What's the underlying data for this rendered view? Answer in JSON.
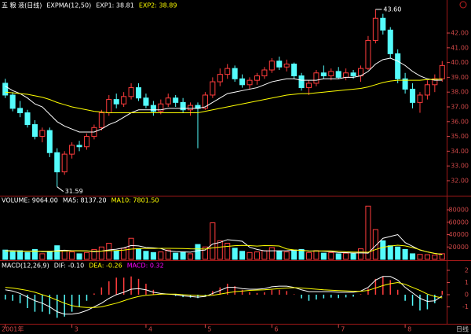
{
  "chart_data": [
    {
      "type": "candlestick",
      "title": "五 粮 液(日线)",
      "indicator": "EXPMA(12,50)",
      "open": [
        38.6,
        37.8,
        36.9,
        36.6,
        35.8,
        35.0,
        35.4,
        33.9,
        32.6,
        33.8,
        34.4,
        34.3,
        35.0,
        35.6,
        36.6,
        37.5,
        37.2,
        37.7,
        38.3,
        37.6,
        37.1,
        36.7,
        37.2,
        37.6,
        37.3,
        36.8,
        37.1,
        36.9,
        37.8,
        38.7,
        39.2,
        39.6,
        38.9,
        38.5,
        38.8,
        39.1,
        39.5,
        40.1,
        39.7,
        39.9,
        39.1,
        38.3,
        38.6,
        39.3,
        39.1,
        39.4,
        39.0,
        39.3,
        39.1,
        39.6,
        41.5,
        43.0,
        42.2,
        40.6,
        38.9,
        38.2,
        37.3,
        37.8,
        38.5,
        38.9
      ],
      "high": [
        38.9,
        38.0,
        37.4,
        36.8,
        36.1,
        35.6,
        35.6,
        34.2,
        34.0,
        34.6,
        34.7,
        35.2,
        35.8,
        36.8,
        37.8,
        37.9,
        38.0,
        38.6,
        38.6,
        37.9,
        37.4,
        37.5,
        37.9,
        37.8,
        37.6,
        37.3,
        37.3,
        38.0,
        39.0,
        39.6,
        39.9,
        39.8,
        39.2,
        39.0,
        39.3,
        39.7,
        40.3,
        40.4,
        40.2,
        40.0,
        39.3,
        38.8,
        39.5,
        39.8,
        39.6,
        39.7,
        39.6,
        39.5,
        39.8,
        41.8,
        43.6,
        43.3,
        42.4,
        40.9,
        39.3,
        38.6,
        38.0,
        38.8,
        39.2,
        40.1
      ],
      "low": [
        37.6,
        36.7,
        36.3,
        35.6,
        34.8,
        34.6,
        33.6,
        31.59,
        32.4,
        33.5,
        34.0,
        34.1,
        34.8,
        35.4,
        36.4,
        36.9,
        37.0,
        37.5,
        37.4,
        36.9,
        36.4,
        36.5,
        37.0,
        37.0,
        36.6,
        36.4,
        34.2,
        36.8,
        37.6,
        38.4,
        38.9,
        38.7,
        38.3,
        38.2,
        38.5,
        38.9,
        39.3,
        39.5,
        39.4,
        38.9,
        38.1,
        37.8,
        38.4,
        38.9,
        38.8,
        38.9,
        38.8,
        38.9,
        38.7,
        39.5,
        41.3,
        41.9,
        40.3,
        38.6,
        37.9,
        36.9,
        36.6,
        37.5,
        38.0,
        38.7
      ],
      "close": [
        37.8,
        36.9,
        36.6,
        35.8,
        35.0,
        35.4,
        33.9,
        32.6,
        33.8,
        34.4,
        34.3,
        35.0,
        35.6,
        36.6,
        37.5,
        37.2,
        37.7,
        38.3,
        37.6,
        37.1,
        36.7,
        37.2,
        37.6,
        37.3,
        36.8,
        37.1,
        36.9,
        37.8,
        38.7,
        39.2,
        39.6,
        38.9,
        38.5,
        38.8,
        39.1,
        39.5,
        40.1,
        39.7,
        39.9,
        39.1,
        38.3,
        38.6,
        39.3,
        39.1,
        39.4,
        39.0,
        39.3,
        39.1,
        39.6,
        41.5,
        43.0,
        42.2,
        40.6,
        38.9,
        38.2,
        37.3,
        37.8,
        38.5,
        38.9,
        39.8
      ],
      "up_color": "#ff3c3c",
      "down_color": "#54fcfc",
      "series": [
        {
          "name": "EXP1: 38.81",
          "color": "#ffffff",
          "values": [
            38.4,
            38.1,
            37.9,
            37.6,
            37.2,
            37.0,
            36.5,
            36.0,
            35.7,
            35.5,
            35.3,
            35.3,
            35.3,
            35.5,
            35.8,
            36.0,
            36.3,
            36.6,
            36.8,
            36.8,
            36.8,
            36.8,
            36.9,
            36.9,
            36.9,
            36.9,
            36.9,
            37.0,
            37.3,
            37.6,
            37.9,
            38.0,
            38.1,
            38.2,
            38.3,
            38.5,
            38.7,
            38.8,
            38.9,
            38.9,
            38.8,
            38.8,
            38.8,
            38.9,
            38.9,
            38.9,
            39.0,
            39.0,
            39.1,
            39.4,
            39.9,
            40.2,
            40.3,
            40.1,
            39.8,
            39.4,
            39.1,
            38.9,
            38.8,
            38.81
          ]
        },
        {
          "name": "EXP2: 38.89",
          "color": "#ffff00",
          "values": [
            38.0,
            37.95,
            37.9,
            37.85,
            37.75,
            37.65,
            37.5,
            37.3,
            37.15,
            37.0,
            36.9,
            36.8,
            36.7,
            36.65,
            36.6,
            36.6,
            36.6,
            36.6,
            36.6,
            36.6,
            36.6,
            36.6,
            36.6,
            36.6,
            36.6,
            36.6,
            36.6,
            36.7,
            36.8,
            36.9,
            37.0,
            37.1,
            37.2,
            37.3,
            37.4,
            37.5,
            37.6,
            37.7,
            37.8,
            37.85,
            37.9,
            37.9,
            37.95,
            38.0,
            38.05,
            38.1,
            38.15,
            38.2,
            38.25,
            38.35,
            38.5,
            38.65,
            38.75,
            38.8,
            38.8,
            38.8,
            38.8,
            38.85,
            38.87,
            38.89
          ]
        }
      ],
      "high_label": "43.60",
      "low_label": "31.59",
      "ylim": [
        31.04,
        44.13
      ],
      "yticks": [
        {
          "value": 32,
          "label": "32.00"
        },
        {
          "value": 33,
          "label": "33.00"
        },
        {
          "value": 34,
          "label": "34.00"
        },
        {
          "value": 35,
          "label": "35.00"
        },
        {
          "value": 36,
          "label": "36.00"
        },
        {
          "value": 37,
          "label": "37.00"
        },
        {
          "value": 38,
          "label": "38.00"
        },
        {
          "value": 39,
          "label": "39.00"
        },
        {
          "value": 40,
          "label": "40.00"
        },
        {
          "value": 41,
          "label": "41.00"
        },
        {
          "value": 42,
          "label": "42.00"
        }
      ]
    },
    {
      "type": "volume",
      "up_color": "#ff3c3c",
      "down_color": "#54fcfc",
      "series": [
        {
          "name": "VOLUME: 9064.00",
          "color": "#ffffff",
          "values": [
            15000,
            12000,
            14000,
            11000,
            16000,
            9000,
            13000,
            22000,
            14000,
            12000,
            9000,
            11000,
            16000,
            20000,
            26000,
            14000,
            18000,
            34000,
            17000,
            13000,
            11000,
            12000,
            15000,
            10000,
            12000,
            9000,
            24000,
            20000,
            59000,
            30000,
            26000,
            18000,
            13000,
            11000,
            12000,
            14000,
            19000,
            13000,
            12000,
            15000,
            16000,
            11000,
            14000,
            10000,
            11000,
            9000,
            10000,
            9000,
            17000,
            86000,
            48000,
            30000,
            22000,
            20000,
            16000,
            9000,
            8000,
            7500,
            7000,
            9064
          ]
        },
        {
          "name": "MA5: 8137.20",
          "color": "#ffffff",
          "values": [
            14000,
            14000,
            13500,
            13000,
            13600,
            12400,
            12600,
            14200,
            14800,
            14000,
            14000,
            13600,
            12400,
            13400,
            15200,
            16400,
            18600,
            22400,
            21800,
            19200,
            18600,
            17400,
            13600,
            12600,
            12000,
            11600,
            14000,
            15000,
            24800,
            27400,
            31800,
            30600,
            29200,
            19600,
            16000,
            13600,
            13800,
            13800,
            14000,
            14600,
            15000,
            13400,
            13600,
            13200,
            12400,
            11000,
            10800,
            10200,
            10400,
            10000,
            22000,
            34000,
            37000,
            40000,
            27000,
            21000,
            15000,
            12000,
            9500,
            8137.2
          ]
        },
        {
          "name": "MA10: 7801.50",
          "color": "#ffff00",
          "values": [
            13500,
            13400,
            13200,
            13000,
            13200,
            13100,
            13000,
            13200,
            13500,
            13600,
            13800,
            13600,
            13200,
            13400,
            13900,
            14300,
            15000,
            16500,
            17300,
            17600,
            17600,
            17700,
            17800,
            17600,
            17500,
            17000,
            16800,
            16600,
            18500,
            19800,
            21000,
            22000,
            22500,
            22300,
            21500,
            22200,
            22000,
            21600,
            16800,
            15300,
            14300,
            13600,
            13500,
            13600,
            13600,
            13000,
            12200,
            11700,
            11700,
            11400,
            15800,
            19500,
            21500,
            22800,
            21700,
            19000,
            15500,
            12000,
            9500,
            7801.5
          ]
        }
      ],
      "ylim": [
        0,
        101600
      ],
      "yticks": [
        20000,
        40000,
        60000,
        80000
      ]
    },
    {
      "type": "macd",
      "title": "MACD(12,26,9)",
      "up_color": "#ff3c3c",
      "down_color": "#54fcfc",
      "series": [
        {
          "name": "DIF: -0.10",
          "color": "#ffffff",
          "values": [
            0.4,
            0.3,
            0.1,
            -0.2,
            -0.5,
            -0.7,
            -1.0,
            -1.4,
            -1.6,
            -1.6,
            -1.5,
            -1.3,
            -1.0,
            -0.7,
            -0.3,
            0.0,
            0.2,
            0.45,
            0.5,
            0.4,
            0.2,
            0.1,
            0.05,
            0.0,
            -0.1,
            -0.15,
            -0.2,
            -0.15,
            0.1,
            0.35,
            0.6,
            0.6,
            0.5,
            0.45,
            0.45,
            0.5,
            0.65,
            0.7,
            0.7,
            0.6,
            0.4,
            0.25,
            0.25,
            0.25,
            0.25,
            0.2,
            0.2,
            0.2,
            0.3,
            0.6,
            1.2,
            1.5,
            1.5,
            1.2,
            0.6,
            0.15,
            -0.3,
            -0.55,
            -0.5,
            -0.1
          ]
        },
        {
          "name": "DEA: -0.26",
          "color": "#ffff00",
          "values": [
            0.6,
            0.55,
            0.45,
            0.35,
            0.2,
            0.0,
            -0.2,
            -0.45,
            -0.7,
            -0.9,
            -1.0,
            -1.05,
            -1.05,
            -1.0,
            -0.85,
            -0.7,
            -0.5,
            -0.3,
            -0.15,
            -0.05,
            0.0,
            0.05,
            0.05,
            0.05,
            0.0,
            -0.03,
            -0.06,
            -0.08,
            -0.05,
            0.05,
            0.15,
            0.25,
            0.3,
            0.35,
            0.38,
            0.4,
            0.45,
            0.5,
            0.55,
            0.58,
            0.55,
            0.5,
            0.45,
            0.4,
            0.37,
            0.34,
            0.31,
            0.28,
            0.28,
            0.35,
            0.55,
            0.75,
            0.9,
            1.0,
            0.85,
            0.6,
            0.35,
            0.05,
            -0.15,
            -0.26
          ]
        },
        {
          "name": "MACD: 0.32",
          "color": "#ff00ff",
          "values": [
            -0.4,
            -0.5,
            -0.7,
            -1.1,
            -1.4,
            -1.4,
            -1.6,
            -1.9,
            -1.8,
            -1.4,
            -1.0,
            -0.5,
            0.1,
            0.6,
            1.1,
            1.4,
            1.4,
            1.5,
            1.3,
            0.9,
            0.4,
            0.1,
            0,
            -0.1,
            -0.2,
            -0.24,
            -0.28,
            -0.14,
            0.3,
            0.6,
            0.9,
            0.7,
            0.4,
            0.2,
            0.14,
            0.2,
            0.4,
            0.4,
            0.3,
            0.04,
            -0.3,
            -0.5,
            -0.4,
            -0.3,
            -0.24,
            -0.28,
            -0.22,
            -0.16,
            0.04,
            0.5,
            1.3,
            1.5,
            1.2,
            0.4,
            -0.5,
            -0.9,
            -1.3,
            -1.2,
            -0.7,
            0.32
          ]
        }
      ],
      "ylim": [
        -2.39,
        2.71
      ],
      "yticks": [
        -1,
        0,
        1,
        2
      ],
      "xticks": [
        {
          "value": 0,
          "label": "2001年"
        },
        {
          "value": 9,
          "label": "3"
        },
        {
          "value": 19,
          "label": "4"
        },
        {
          "value": 27,
          "label": "5"
        },
        {
          "value": 36,
          "label": "6"
        },
        {
          "value": 45,
          "label": "7"
        },
        {
          "value": 54,
          "label": "8"
        }
      ],
      "period_label": "日线"
    }
  ]
}
